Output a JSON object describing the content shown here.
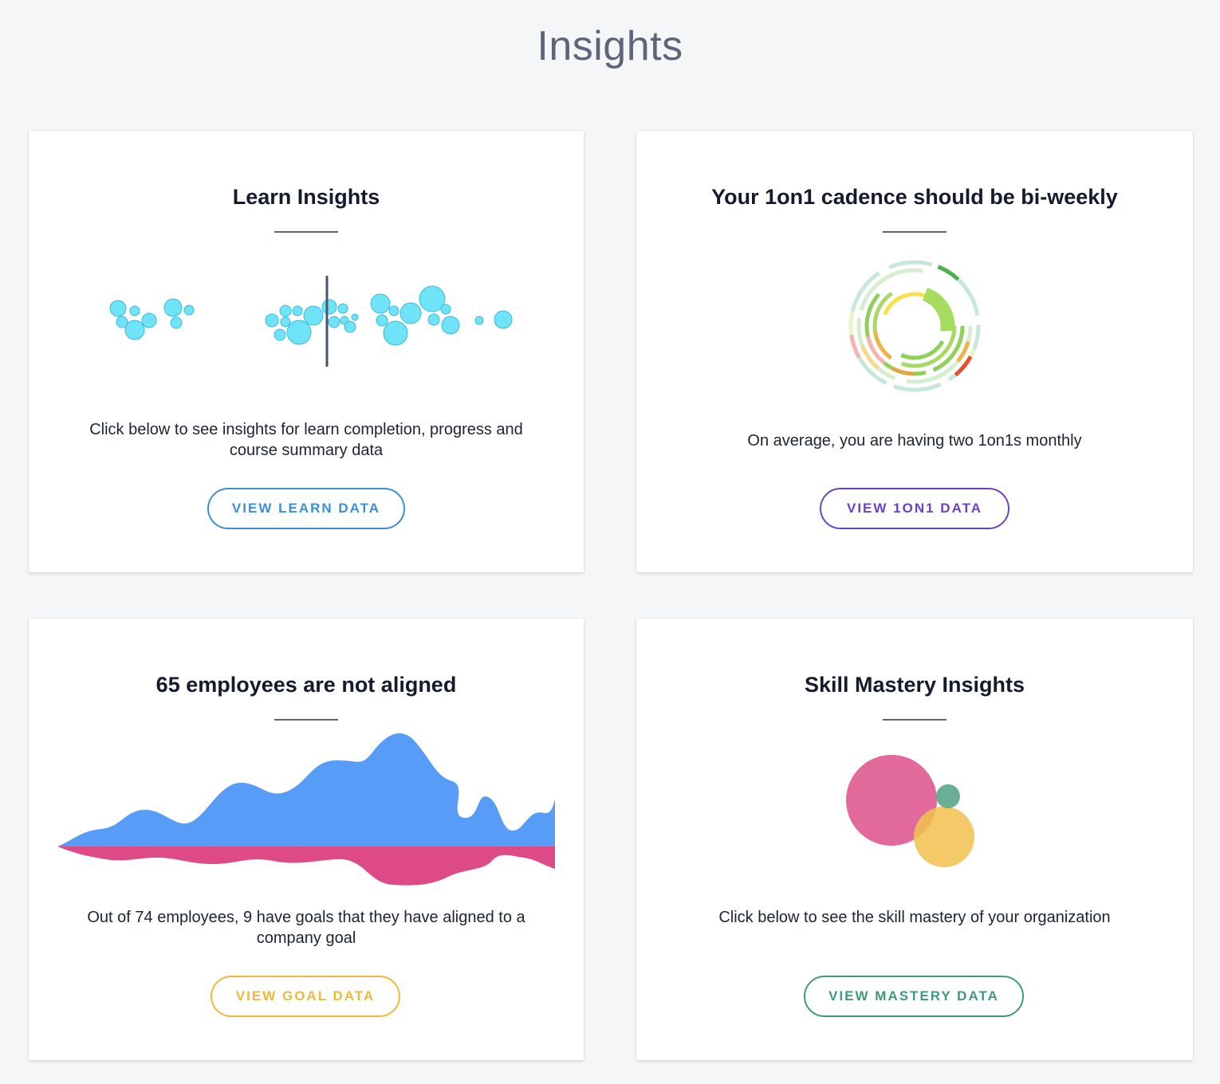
{
  "page": {
    "title": "Insights"
  },
  "cards": {
    "learn": {
      "title": "Learn Insights",
      "description": "Click below to see insights for learn completion, progress and course summary data",
      "button": "VIEW LEARN DATA",
      "accent": "#3b8fd9"
    },
    "oneonone": {
      "title": "Your 1on1 cadence should be bi-weekly",
      "description": "On average, you are having two 1on1s monthly",
      "button": "VIEW 1ON1 DATA",
      "accent": "#6a42c6"
    },
    "goal": {
      "title": "65 employees are not aligned",
      "description": "Out of 74 employees, 9 have goals that they have aligned to a company goal",
      "button": "VIEW GOAL DATA",
      "accent": "#f0b83a"
    },
    "mastery": {
      "title": "Skill Mastery Insights",
      "description": "Click below to see the skill mastery of your organization",
      "button": "VIEW MASTERY DATA",
      "accent": "#3f9a78"
    }
  },
  "colors": {
    "bubble_fill": "#6fe3f8",
    "bubble_stroke": "#3fb8d6",
    "aligned_area": "#579cf6",
    "not_aligned_area": "#dd4a86",
    "mastery_pink": "#e05d92",
    "mastery_yellow": "#f2c14e",
    "mastery_green": "#5aa58a"
  }
}
